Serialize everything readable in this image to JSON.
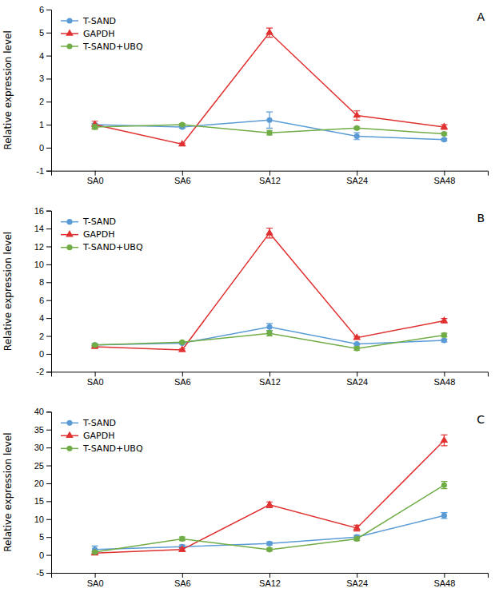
{
  "chart_data": [
    {
      "type": "line",
      "categories": [
        "SA0",
        "SA6",
        "SA12",
        "SA24",
        "SA48"
      ],
      "y_label": "Relative expression level",
      "annotations": [
        "A"
      ],
      "series": [
        {
          "name": "T-SAND",
          "color": "#5b9bd5",
          "marker": "circle",
          "values": [
            1.0,
            0.9,
            1.2,
            0.5,
            0.35
          ],
          "errors": [
            0.05,
            0.05,
            0.35,
            0.15,
            0.05
          ]
        },
        {
          "name": "GAPDH",
          "color": "#e03030",
          "marker": "triangle",
          "values": [
            1.0,
            0.15,
            5.0,
            1.4,
            0.9
          ],
          "errors": [
            0.15,
            0.05,
            0.2,
            0.2,
            0.1
          ]
        },
        {
          "name": "T-SAND+UBQ",
          "color": "#70ad47",
          "marker": "circle",
          "values": [
            0.9,
            1.0,
            0.65,
            0.85,
            0.6
          ],
          "errors": [
            0.1,
            0.05,
            0.1,
            0.05,
            0.05
          ]
        }
      ],
      "ylim": [
        -1,
        6
      ],
      "yticks": [
        -1,
        0,
        1,
        2,
        3,
        4,
        5,
        6
      ],
      "legend": "upper left"
    },
    {
      "type": "line",
      "categories": [
        "SA0",
        "SA6",
        "SA12",
        "SA24",
        "SA48"
      ],
      "y_label": "Relative expression level",
      "annotations": [
        "B"
      ],
      "series": [
        {
          "name": "T-SAND",
          "color": "#5b9bd5",
          "marker": "circle",
          "values": [
            1.0,
            1.2,
            3.0,
            1.1,
            1.5
          ],
          "errors": [
            0.15,
            0.1,
            0.4,
            0.1,
            0.15
          ]
        },
        {
          "name": "GAPDH",
          "color": "#e03030",
          "marker": "triangle",
          "values": [
            0.8,
            0.45,
            13.5,
            1.8,
            3.7
          ],
          "errors": [
            0.1,
            0.1,
            0.55,
            0.15,
            0.25
          ]
        },
        {
          "name": "T-SAND+UBQ",
          "color": "#70ad47",
          "marker": "circle",
          "values": [
            1.0,
            1.3,
            2.3,
            0.6,
            2.1
          ],
          "errors": [
            0.1,
            0.1,
            0.3,
            0.2,
            0.2
          ]
        }
      ],
      "ylim": [
        -2,
        16
      ],
      "yticks": [
        -2,
        0,
        2,
        4,
        6,
        8,
        10,
        12,
        14,
        16
      ],
      "legend": "upper left"
    },
    {
      "type": "line",
      "categories": [
        "SA0",
        "SA6",
        "SA12",
        "SA24",
        "SA48"
      ],
      "y_label": "Relative expression level",
      "annotations": [
        "C"
      ],
      "series": [
        {
          "name": "T-SAND",
          "color": "#5b9bd5",
          "marker": "circle",
          "values": [
            1.5,
            2.3,
            3.2,
            5.0,
            11.0
          ],
          "errors": [
            1.0,
            0.5,
            0.4,
            0.5,
            0.8
          ]
        },
        {
          "name": "GAPDH",
          "color": "#e03030",
          "marker": "triangle",
          "values": [
            0.5,
            1.5,
            14.0,
            7.5,
            32.0
          ],
          "errors": [
            0.3,
            0.5,
            0.8,
            0.8,
            1.5
          ]
        },
        {
          "name": "T-SAND+UBQ",
          "color": "#70ad47",
          "marker": "circle",
          "values": [
            0.8,
            4.5,
            1.5,
            4.5,
            19.5
          ],
          "errors": [
            0.3,
            0.5,
            0.4,
            0.5,
            1.0
          ]
        }
      ],
      "ylim": [
        -5,
        40
      ],
      "yticks": [
        -5,
        0,
        5,
        10,
        15,
        20,
        25,
        30,
        35,
        40
      ],
      "legend": "upper left"
    }
  ]
}
